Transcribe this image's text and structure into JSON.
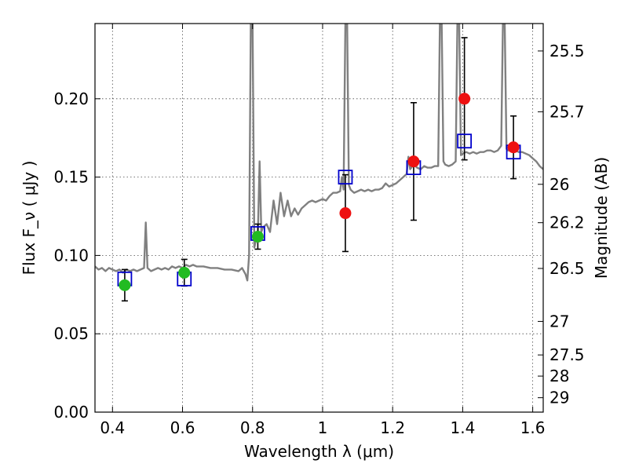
{
  "chart_data": {
    "type": "scatter",
    "xlabel": "Wavelength  λ (μm)",
    "ylabel": "Flux  F_ν  ( μJy )",
    "y2label": "Magnitude (AB)",
    "xlim": [
      0.35,
      1.63
    ],
    "ylim": [
      0.0,
      0.248
    ],
    "x_ticks": [
      "0.4",
      "0.6",
      "0.8",
      "1",
      "1.2",
      "1.4",
      "1.6"
    ],
    "x_tick_values": [
      0.4,
      0.6,
      0.8,
      1.0,
      1.2,
      1.4,
      1.6
    ],
    "y_ticks": [
      "0.00",
      "0.05",
      "0.10",
      "0.15",
      "0.20"
    ],
    "y_tick_values": [
      0.0,
      0.05,
      0.1,
      0.15,
      0.2
    ],
    "y2_ticks": [
      {
        "label": "25.5",
        "flux": 0.2305
      },
      {
        "label": "25.7",
        "flux": 0.1917
      },
      {
        "label": "26",
        "flux": 0.1454
      },
      {
        "label": "26.2",
        "flux": 0.1209
      },
      {
        "label": "26.5",
        "flux": 0.0917
      },
      {
        "label": "27",
        "flux": 0.0579
      },
      {
        "label": "27.5",
        "flux": 0.0365
      },
      {
        "label": "28",
        "flux": 0.023
      },
      {
        "label": "29",
        "flux": 0.0092
      }
    ],
    "grid": true,
    "model_spectrum": {
      "color": "#808080",
      "points": [
        [
          0.35,
          0.093
        ],
        [
          0.36,
          0.091
        ],
        [
          0.37,
          0.092
        ],
        [
          0.38,
          0.09
        ],
        [
          0.39,
          0.092
        ],
        [
          0.4,
          0.091
        ],
        [
          0.41,
          0.09
        ],
        [
          0.42,
          0.091
        ],
        [
          0.43,
          0.089
        ],
        [
          0.44,
          0.091
        ],
        [
          0.45,
          0.09
        ],
        [
          0.46,
          0.091
        ],
        [
          0.47,
          0.09
        ],
        [
          0.48,
          0.091
        ],
        [
          0.49,
          0.092
        ],
        [
          0.495,
          0.121
        ],
        [
          0.5,
          0.092
        ],
        [
          0.51,
          0.09
        ],
        [
          0.52,
          0.091
        ],
        [
          0.53,
          0.092
        ],
        [
          0.54,
          0.091
        ],
        [
          0.55,
          0.092
        ],
        [
          0.56,
          0.091
        ],
        [
          0.57,
          0.093
        ],
        [
          0.58,
          0.092
        ],
        [
          0.59,
          0.093
        ],
        [
          0.6,
          0.092
        ],
        [
          0.61,
          0.094
        ],
        [
          0.62,
          0.093
        ],
        [
          0.63,
          0.094
        ],
        [
          0.64,
          0.093
        ],
        [
          0.66,
          0.093
        ],
        [
          0.68,
          0.092
        ],
        [
          0.7,
          0.092
        ],
        [
          0.72,
          0.091
        ],
        [
          0.74,
          0.091
        ],
        [
          0.76,
          0.09
        ],
        [
          0.77,
          0.092
        ],
        [
          0.78,
          0.088
        ],
        [
          0.785,
          0.084
        ],
        [
          0.79,
          0.1
        ],
        [
          0.795,
          0.25
        ],
        [
          0.8,
          0.25
        ],
        [
          0.805,
          0.105
        ],
        [
          0.81,
          0.11
        ],
        [
          0.815,
          0.112
        ],
        [
          0.82,
          0.16
        ],
        [
          0.825,
          0.115
        ],
        [
          0.83,
          0.118
        ],
        [
          0.84,
          0.12
        ],
        [
          0.85,
          0.115
        ],
        [
          0.86,
          0.135
        ],
        [
          0.87,
          0.12
        ],
        [
          0.88,
          0.14
        ],
        [
          0.89,
          0.125
        ],
        [
          0.9,
          0.135
        ],
        [
          0.91,
          0.125
        ],
        [
          0.92,
          0.13
        ],
        [
          0.93,
          0.126
        ],
        [
          0.94,
          0.13
        ],
        [
          0.95,
          0.132
        ],
        [
          0.96,
          0.134
        ],
        [
          0.97,
          0.135
        ],
        [
          0.98,
          0.134
        ],
        [
          0.99,
          0.135
        ],
        [
          1.0,
          0.136
        ],
        [
          1.01,
          0.135
        ],
        [
          1.02,
          0.138
        ],
        [
          1.03,
          0.14
        ],
        [
          1.04,
          0.14
        ],
        [
          1.05,
          0.141
        ],
        [
          1.055,
          0.15
        ],
        [
          1.06,
          0.142
        ],
        [
          1.065,
          0.25
        ],
        [
          1.07,
          0.25
        ],
        [
          1.075,
          0.145
        ],
        [
          1.08,
          0.142
        ],
        [
          1.09,
          0.14
        ],
        [
          1.1,
          0.141
        ],
        [
          1.11,
          0.142
        ],
        [
          1.12,
          0.141
        ],
        [
          1.13,
          0.142
        ],
        [
          1.14,
          0.141
        ],
        [
          1.15,
          0.142
        ],
        [
          1.16,
          0.142
        ],
        [
          1.17,
          0.143
        ],
        [
          1.18,
          0.146
        ],
        [
          1.19,
          0.144
        ],
        [
          1.2,
          0.145
        ],
        [
          1.21,
          0.146
        ],
        [
          1.22,
          0.148
        ],
        [
          1.23,
          0.15
        ],
        [
          1.24,
          0.152
        ],
        [
          1.245,
          0.163
        ],
        [
          1.25,
          0.155
        ],
        [
          1.26,
          0.158
        ],
        [
          1.27,
          0.156
        ],
        [
          1.28,
          0.155
        ],
        [
          1.29,
          0.157
        ],
        [
          1.3,
          0.156
        ],
        [
          1.31,
          0.156
        ],
        [
          1.32,
          0.157
        ],
        [
          1.33,
          0.157
        ],
        [
          1.335,
          0.25
        ],
        [
          1.34,
          0.25
        ],
        [
          1.345,
          0.16
        ],
        [
          1.35,
          0.158
        ],
        [
          1.36,
          0.157
        ],
        [
          1.37,
          0.158
        ],
        [
          1.38,
          0.16
        ],
        [
          1.385,
          0.25
        ],
        [
          1.39,
          0.25
        ],
        [
          1.395,
          0.164
        ],
        [
          1.4,
          0.165
        ],
        [
          1.41,
          0.166
        ],
        [
          1.42,
          0.165
        ],
        [
          1.43,
          0.166
        ],
        [
          1.44,
          0.165
        ],
        [
          1.45,
          0.166
        ],
        [
          1.46,
          0.166
        ],
        [
          1.47,
          0.167
        ],
        [
          1.48,
          0.167
        ],
        [
          1.49,
          0.166
        ],
        [
          1.5,
          0.167
        ],
        [
          1.51,
          0.17
        ],
        [
          1.515,
          0.25
        ],
        [
          1.52,
          0.25
        ],
        [
          1.525,
          0.168
        ],
        [
          1.53,
          0.167
        ],
        [
          1.54,
          0.167
        ],
        [
          1.55,
          0.167
        ],
        [
          1.56,
          0.166
        ],
        [
          1.57,
          0.166
        ],
        [
          1.58,
          0.165
        ],
        [
          1.59,
          0.164
        ],
        [
          1.6,
          0.162
        ],
        [
          1.61,
          0.16
        ],
        [
          1.62,
          0.157
        ],
        [
          1.63,
          0.155
        ]
      ]
    },
    "model_photometry": {
      "color": "#0000cc",
      "points": [
        {
          "x": 0.435,
          "y": 0.085
        },
        {
          "x": 0.605,
          "y": 0.085
        },
        {
          "x": 0.815,
          "y": 0.114
        },
        {
          "x": 1.065,
          "y": 0.15
        },
        {
          "x": 1.26,
          "y": 0.156
        },
        {
          "x": 1.405,
          "y": 0.173
        },
        {
          "x": 1.545,
          "y": 0.166
        }
      ]
    },
    "optical_detections": {
      "color": "#22bb22",
      "points": [
        {
          "x": 0.435,
          "y": 0.081,
          "err": 0.01
        },
        {
          "x": 0.605,
          "y": 0.089,
          "err": 0.0085
        },
        {
          "x": 0.815,
          "y": 0.112,
          "err": 0.008
        }
      ]
    },
    "nir_detections": {
      "color": "#ee1111",
      "points": [
        {
          "x": 1.065,
          "y": 0.127,
          "err": 0.0245
        },
        {
          "x": 1.26,
          "y": 0.16,
          "err": 0.0375
        },
        {
          "x": 1.405,
          "y": 0.2,
          "err": 0.039
        },
        {
          "x": 1.545,
          "y": 0.169,
          "err": 0.02
        }
      ]
    }
  }
}
